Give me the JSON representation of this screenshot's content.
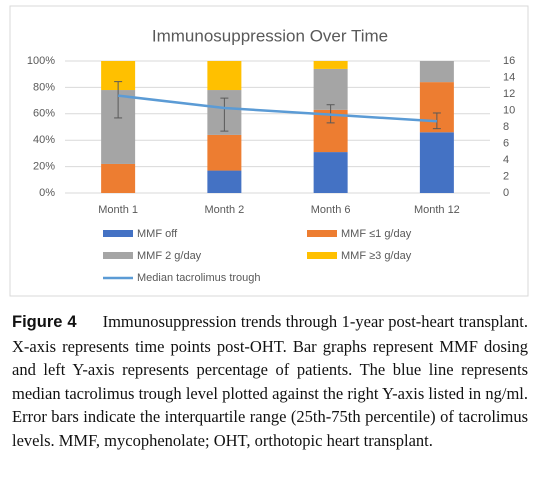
{
  "chart_data": {
    "type": "bar",
    "stacked": true,
    "title": "Immunosuppression  Over Time",
    "categories": [
      "Month 1",
      "Month 2",
      "Month 6",
      "Month 12"
    ],
    "series": [
      {
        "name": "MMF off",
        "color": "#4472c4",
        "values": [
          0,
          17,
          31,
          46
        ]
      },
      {
        "name": "MMF ≤1 g/day",
        "color": "#ed7d31",
        "values": [
          22,
          27,
          32,
          38
        ]
      },
      {
        "name": "MMF 2 g/day",
        "color": "#a5a5a5",
        "values": [
          56,
          34,
          31,
          16
        ]
      },
      {
        "name": "MMF ≥3 g/day",
        "color": "#ffc000",
        "values": [
          22,
          22,
          6,
          0
        ]
      },
      {
        "name": "Median tacrolimus trough",
        "type": "line",
        "axis": "y2",
        "color": "#5b9bd5",
        "values": [
          11.8,
          10.3,
          9.5,
          8.7
        ],
        "iqr_low": [
          9.1,
          7.5,
          8.5,
          7.8
        ],
        "iqr_high": [
          13.5,
          11.5,
          10.7,
          9.7
        ]
      }
    ],
    "ylim": [
      0,
      100
    ],
    "yticks": [
      {
        "value": 0,
        "label": "0%"
      },
      {
        "value": 20,
        "label": "20%"
      },
      {
        "value": 40,
        "label": "40%"
      },
      {
        "value": 60,
        "label": "60%"
      },
      {
        "value": 80,
        "label": "80%"
      },
      {
        "value": 100,
        "label": "100%"
      }
    ],
    "y2lim": [
      0,
      16
    ],
    "y2ticks": [
      0,
      2,
      4,
      6,
      8,
      10,
      12,
      14,
      16
    ],
    "grid": true
  },
  "figure_caption": {
    "label": "Figure 4",
    "text": "Immunosuppression trends through 1-year post-heart transplant. X-axis represents time points post-OHT. Bar graphs represent MMF dosing and left Y-axis represents percentage of patients. The blue line represents median tacrolimus trough level plotted against the right Y-axis listed in ng/ml. Error bars indicate the interquartile range (25th-75th percentile) of tacrolimus levels. MMF, mycophenolate; OHT, orthotopic heart transplant."
  }
}
